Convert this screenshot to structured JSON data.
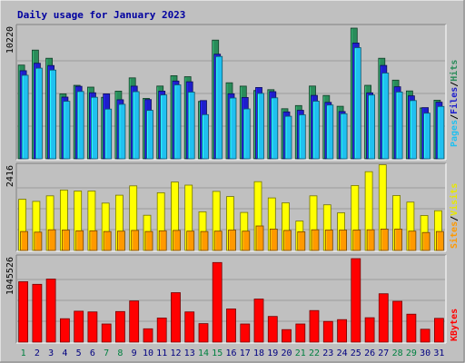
{
  "chart_data": {
    "title": "Daily usage for January 2023",
    "x": [
      "1",
      "2",
      "3",
      "4",
      "5",
      "6",
      "7",
      "8",
      "9",
      "10",
      "11",
      "12",
      "13",
      "14",
      "15",
      "16",
      "17",
      "18",
      "19",
      "20",
      "21",
      "22",
      "23",
      "24",
      "25",
      "26",
      "27",
      "28",
      "29",
      "30",
      "31"
    ],
    "weekend_days": [
      "1",
      "7",
      "8",
      "14",
      "15",
      "21",
      "22",
      "28",
      "29"
    ],
    "panels": [
      {
        "type": "bar",
        "ytick": "10220",
        "ylim": [
          0,
          10900
        ],
        "series": [
          {
            "name": "Hits",
            "color": "#2a8c5a",
            "values": [
              7820,
              9070,
              8390,
              5420,
              6130,
              5980,
              5130,
              5650,
              6750,
              5040,
              6070,
              6930,
              6850,
              4790,
              9900,
              6340,
              6060,
              5700,
              5770,
              4180,
              4440,
              6070,
              5280,
              4380,
              10900,
              6130,
              8390,
              6560,
              5660,
              4250,
              4890
            ]
          },
          {
            "name": "Files",
            "color": "#1e1ecc",
            "values": [
              7350,
              7970,
              7780,
              5150,
              6050,
              5510,
              5420,
              4930,
              6060,
              4940,
              5650,
              6490,
              6430,
              4860,
              8730,
              5430,
              5120,
              5950,
              5600,
              3910,
              4050,
              5290,
              4710,
              3940,
              9660,
              5500,
              7790,
              6010,
              5250,
              4270,
              4720
            ]
          },
          {
            "name": "Pages",
            "color": "#20c0f0",
            "values": [
              6970,
              7560,
              7400,
              4800,
              5620,
              5130,
              4150,
              4550,
              5600,
              4040,
              5330,
              6170,
              5560,
              3690,
              8540,
              5070,
              4160,
              5460,
              5090,
              3550,
              3670,
              4810,
              4490,
              3760,
              9270,
              5320,
              7150,
              5570,
              4860,
              3810,
              4370
            ]
          }
        ]
      },
      {
        "type": "bar",
        "ytick": "2416",
        "ylim": [
          0,
          2416
        ],
        "series": [
          {
            "name": "Visits",
            "color": "#ffff00",
            "values": [
              1480,
              1420,
              1580,
              1750,
              1720,
              1720,
              1370,
              1600,
              1870,
              1020,
              1670,
              1980,
              1890,
              1120,
              1710,
              1560,
              1100,
              1990,
              1520,
              1380,
              850,
              1580,
              1320,
              1090,
              1880,
              2280,
              2480,
              1590,
              1400,
              1010,
              1150
            ]
          },
          {
            "name": "Sites",
            "color": "#ff9900",
            "values": [
              550,
              530,
              600,
              590,
              570,
              570,
              550,
              560,
              580,
              550,
              570,
              580,
              560,
              550,
              560,
              590,
              560,
              710,
              620,
              580,
              540,
              600,
              590,
              590,
              590,
              600,
              620,
              620,
              560,
              520,
              550
            ]
          }
        ]
      },
      {
        "type": "bar",
        "ytick": "1045526",
        "ylim": [
          0,
          1105000
        ],
        "series": [
          {
            "name": "KBytes",
            "color": "#ff0000",
            "values": [
              800000,
              765000,
              835000,
              310000,
              410000,
              400000,
              240000,
              405000,
              545000,
              176000,
              320000,
              654000,
              400000,
              245000,
              1053000,
              439000,
              240000,
              571000,
              340000,
              166000,
              240000,
              418000,
              274000,
              298000,
              1105000,
              323000,
              640000,
              540000,
              370000,
              170000,
              315000
            ]
          }
        ]
      }
    ],
    "legend_top": [
      "Pages",
      "/",
      "Files",
      "/",
      "Hits"
    ],
    "legend_mid": [
      "Sites",
      "/",
      "Visits"
    ],
    "legend_bot": [
      "KBytes"
    ]
  }
}
